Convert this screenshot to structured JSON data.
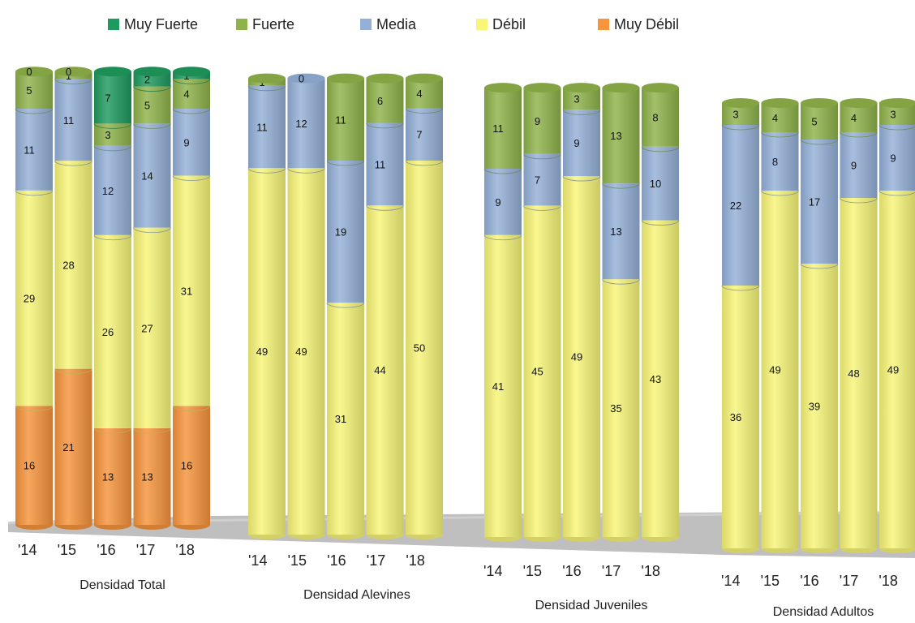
{
  "colors": {
    "muy_fuerte": "#1f9a5e",
    "fuerte": "#8fb24a",
    "media": "#94b0d8",
    "debil": "#f8f577",
    "muy_debil": "#f7943c",
    "floor": "#bfbfbf"
  },
  "chart_data": {
    "type": "bar",
    "stacked": true,
    "three_d": true,
    "legend": {
      "placement": "top",
      "entries": [
        "Muy Fuerte",
        "Fuerte",
        "Media",
        "Débil",
        "Muy Débil"
      ]
    },
    "series_order_bottom_to_top": [
      "Muy Débil",
      "Débil",
      "Media",
      "Fuerte",
      "Muy Fuerte"
    ],
    "groups": [
      {
        "label": "Densidad Total",
        "categories": [
          "'14",
          "'15",
          "'16",
          "'17",
          "'18"
        ],
        "series": [
          {
            "name": "Muy Débil",
            "values": [
              16,
              21,
              13,
              13,
              16
            ]
          },
          {
            "name": "Débil",
            "values": [
              29,
              28,
              26,
              27,
              31
            ]
          },
          {
            "name": "Media",
            "values": [
              11,
              11,
              12,
              14,
              9
            ]
          },
          {
            "name": "Fuerte",
            "values": [
              5,
              1,
              3,
              5,
              4
            ]
          },
          {
            "name": "Muy Fuerte",
            "values": [
              0,
              0,
              7,
              2,
              1
            ]
          }
        ]
      },
      {
        "label": "Densidad Alevines",
        "categories": [
          "'14",
          "'15",
          "'16",
          "'17",
          "'18"
        ],
        "series": [
          {
            "name": "Muy Débil",
            "values": [
              0,
              0,
              0,
              0,
              0
            ]
          },
          {
            "name": "Débil",
            "values": [
              49,
              49,
              31,
              44,
              50
            ]
          },
          {
            "name": "Media",
            "values": [
              11,
              12,
              19,
              11,
              7
            ]
          },
          {
            "name": "Fuerte",
            "values": [
              1,
              0,
              11,
              6,
              4
            ]
          },
          {
            "name": "Muy Fuerte",
            "values": [
              0,
              0,
              0,
              0,
              0
            ]
          }
        ]
      },
      {
        "label": "Densidad Juveniles",
        "categories": [
          "'14",
          "'15",
          "'16",
          "'17",
          "'18"
        ],
        "series": [
          {
            "name": "Muy Débil",
            "values": [
              0,
              0,
              0,
              0,
              0
            ]
          },
          {
            "name": "Débil",
            "values": [
              41,
              45,
              49,
              35,
              43
            ]
          },
          {
            "name": "Media",
            "values": [
              9,
              7,
              9,
              13,
              10
            ]
          },
          {
            "name": "Fuerte",
            "values": [
              11,
              9,
              3,
              13,
              8
            ]
          },
          {
            "name": "Muy Fuerte",
            "values": [
              0,
              0,
              0,
              0,
              0
            ]
          }
        ]
      },
      {
        "label": "Densidad Adultos",
        "categories": [
          "'14",
          "'15",
          "'16",
          "'17",
          "'18"
        ],
        "series": [
          {
            "name": "Muy Débil",
            "values": [
              0,
              0,
              0,
              0,
              0
            ]
          },
          {
            "name": "Débil",
            "values": [
              36,
              49,
              39,
              48,
              49
            ]
          },
          {
            "name": "Media",
            "values": [
              22,
              8,
              17,
              9,
              9
            ]
          },
          {
            "name": "Fuerte",
            "values": [
              3,
              4,
              5,
              4,
              3
            ]
          },
          {
            "name": "Muy Fuerte",
            "values": [
              0,
              0,
              0,
              0,
              0
            ]
          }
        ]
      }
    ]
  }
}
